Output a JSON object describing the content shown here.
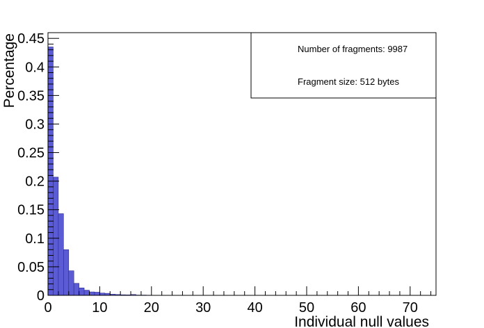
{
  "chart_data": {
    "type": "bar",
    "xlabel": "Individual null values",
    "ylabel": "Percentage",
    "xlim": [
      0,
      75
    ],
    "ylim": [
      0,
      0.46
    ],
    "bin_width": 1,
    "x": [
      0,
      1,
      2,
      3,
      4,
      5,
      6,
      7,
      8,
      9,
      10,
      11,
      12,
      13,
      14,
      15,
      16,
      17,
      18,
      19,
      20,
      21,
      22,
      23,
      24,
      25
    ],
    "values": [
      0.435,
      0.207,
      0.143,
      0.08,
      0.043,
      0.021,
      0.013,
      0.009,
      0.006,
      0.0055,
      0.004,
      0.0035,
      0.002,
      0.0015,
      0.001,
      0.0008,
      0.0015,
      0.0005,
      0.0005,
      0.0003,
      0.0002,
      0,
      0,
      0,
      0,
      0.0002
    ],
    "x_ticks": [
      "0",
      "10",
      "20",
      "30",
      "40",
      "50",
      "60",
      "70"
    ],
    "x_tick_values": [
      0,
      10,
      20,
      30,
      40,
      50,
      60,
      70
    ],
    "y_ticks": [
      "0",
      "0.05",
      "0.1",
      "0.15",
      "0.2",
      "0.25",
      "0.3",
      "0.35",
      "0.4",
      "0.45"
    ],
    "y_tick_values": [
      0,
      0.05,
      0.1,
      0.15,
      0.2,
      0.25,
      0.3,
      0.35,
      0.4,
      0.45
    ],
    "bar_color": "#5b5bd6",
    "bar_edge_color": "#2a2a8a",
    "grid": false,
    "legend": {
      "position": "top-right",
      "lines": [
        "Number of fragments: 9987",
        "Fragment size: 512 bytes"
      ]
    }
  }
}
